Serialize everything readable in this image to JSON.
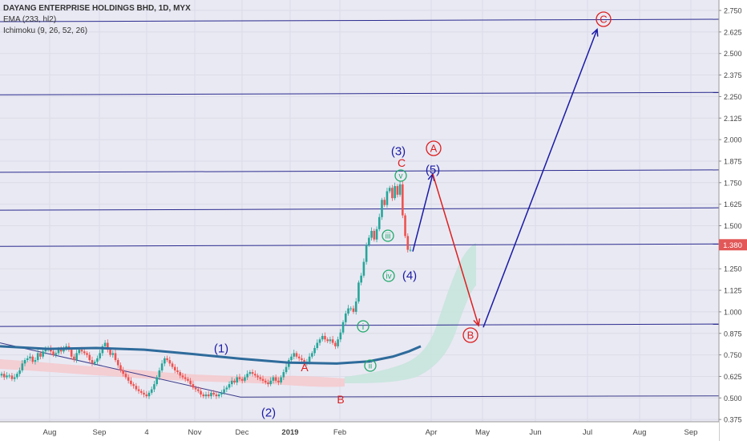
{
  "legend": {
    "title": "DAYANG ENTERPRISE HOLDINGS BHD, 1D, MYX",
    "ema": "EMA (233, hl2)",
    "ichimoku": "Ichimoku (9, 26, 52, 26)"
  },
  "price_label": "1.380",
  "colors": {
    "bg": "#e9e9f3",
    "hline": "#2a2a8f",
    "up": "#26a69a",
    "down": "#ef5350",
    "ema": "#2e6b9b",
    "cloud_red": "#f4c9cc",
    "cloud_green": "#c8e4dd",
    "wave_blue": "#1a1aa6",
    "wave_red": "#dd1f1f",
    "wave_green": "#1faa6a",
    "price_tag": "#e25757"
  },
  "chart_data": {
    "type": "candlestick",
    "ylim": [
      0.375,
      2.8
    ],
    "y_ticks": [
      "2.750",
      "2.625",
      "2.500",
      "2.375",
      "2.250",
      "2.125",
      "2.000",
      "1.875",
      "1.750",
      "1.625",
      "1.500",
      "1.380",
      "1.250",
      "1.125",
      "1.000",
      "0.875",
      "0.750",
      "0.625",
      "0.500",
      "0.375"
    ],
    "x_ticks": [
      "Aug",
      "Sep",
      "4",
      "Nov",
      "Dec",
      "2019",
      "Feb",
      "Apr",
      "May",
      "Jun",
      "Jul",
      "Aug",
      "Sep"
    ],
    "horizontal_lines": [
      2.68,
      2.26,
      1.81,
      1.59,
      1.38,
      0.915
    ],
    "wave_labels": [
      {
        "text": "(1)",
        "color": "blue"
      },
      {
        "text": "(2)",
        "color": "blue"
      },
      {
        "text": "(3)",
        "color": "blue"
      },
      {
        "text": "(4)",
        "color": "blue"
      },
      {
        "text": "(5)",
        "color": "blue"
      },
      {
        "text": "A",
        "color": "red"
      },
      {
        "text": "B",
        "color": "red"
      },
      {
        "text": "C",
        "color": "red"
      },
      {
        "text": "A",
        "color": "red"
      },
      {
        "text": "B",
        "color": "red"
      },
      {
        "text": "C",
        "color": "red"
      },
      {
        "text": "i",
        "color": "green"
      },
      {
        "text": "ii",
        "color": "green"
      },
      {
        "text": "iii",
        "color": "green"
      },
      {
        "text": "iv",
        "color": "green"
      },
      {
        "text": "v",
        "color": "green"
      }
    ],
    "projection": [
      {
        "from": [
          515,
          1.35
        ],
        "to": [
          540,
          1.8
        ],
        "color": "blue"
      },
      {
        "from": [
          540,
          1.8
        ],
        "to": [
          597,
          0.92
        ],
        "color": "red"
      },
      {
        "from": [
          603,
          0.91
        ],
        "to": [
          745,
          2.64
        ],
        "color": "blue"
      }
    ],
    "candles_close": [
      0.64,
      0.62,
      0.63,
      0.63,
      0.61,
      0.62,
      0.64,
      0.66,
      0.7,
      0.72,
      0.73,
      0.74,
      0.71,
      0.72,
      0.76,
      0.74,
      0.77,
      0.78,
      0.79,
      0.77,
      0.75,
      0.76,
      0.78,
      0.77,
      0.79,
      0.8,
      0.78,
      0.74,
      0.72,
      0.76,
      0.78,
      0.77,
      0.76,
      0.75,
      0.72,
      0.7,
      0.71,
      0.73,
      0.76,
      0.8,
      0.82,
      0.78,
      0.75,
      0.76,
      0.72,
      0.69,
      0.66,
      0.64,
      0.62,
      0.6,
      0.58,
      0.57,
      0.55,
      0.54,
      0.53,
      0.52,
      0.51,
      0.53,
      0.55,
      0.58,
      0.62,
      0.66,
      0.7,
      0.73,
      0.72,
      0.7,
      0.68,
      0.66,
      0.65,
      0.63,
      0.62,
      0.61,
      0.6,
      0.58,
      0.56,
      0.55,
      0.54,
      0.52,
      0.51,
      0.52,
      0.51,
      0.53,
      0.52,
      0.51,
      0.52,
      0.53,
      0.55,
      0.56,
      0.58,
      0.6,
      0.59,
      0.62,
      0.61,
      0.6,
      0.62,
      0.64,
      0.65,
      0.64,
      0.63,
      0.62,
      0.61,
      0.6,
      0.59,
      0.58,
      0.6,
      0.62,
      0.6,
      0.59,
      0.62,
      0.65,
      0.68,
      0.72,
      0.74,
      0.76,
      0.74,
      0.73,
      0.72,
      0.7,
      0.71,
      0.74,
      0.76,
      0.79,
      0.82,
      0.84,
      0.86,
      0.84,
      0.83,
      0.84,
      0.82,
      0.8,
      0.84,
      0.88,
      0.94,
      0.99,
      1.02,
      1.02,
      1.0,
      1.06,
      1.17,
      1.21,
      1.29,
      1.39,
      1.43,
      1.47,
      1.42,
      1.48,
      1.55,
      1.65,
      1.62,
      1.7,
      1.72,
      1.66,
      1.73,
      1.68,
      1.74,
      1.56,
      1.44,
      1.36,
      1.36
    ]
  }
}
